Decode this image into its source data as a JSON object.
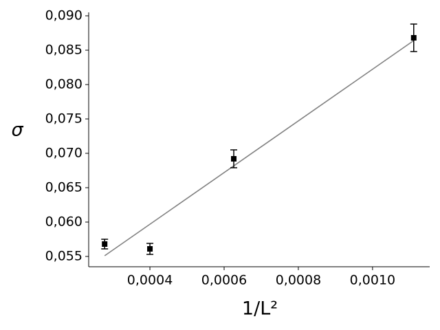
{
  "chart_data": {
    "type": "scatter",
    "xlabel": "1/L²",
    "ylabel": "σ",
    "x": [
      0.000278,
      0.0004,
      0.000626,
      0.001111
    ],
    "values": [
      0.0568,
      0.0561,
      0.0692,
      0.0868
    ],
    "errors": [
      0.0007,
      0.0008,
      0.0013,
      0.002
    ],
    "color": "#000000",
    "fit": {
      "x": [
        0.000278,
        0.001111
      ],
      "values": [
        0.0551,
        0.0864
      ],
      "color": "#808080"
    },
    "xlim": [
      0.000235,
      0.001154
    ],
    "ylim": [
      0.0535,
      0.0905
    ],
    "xticks": [
      {
        "value": 0.0004,
        "label": "0,0004"
      },
      {
        "value": 0.0006,
        "label": "0,0006"
      },
      {
        "value": 0.0008,
        "label": "0,0008"
      },
      {
        "value": 0.001,
        "label": "0,0010"
      }
    ],
    "yticks": [
      {
        "value": 0.055,
        "label": "0,055"
      },
      {
        "value": 0.06,
        "label": "0,060"
      },
      {
        "value": 0.065,
        "label": "0,065"
      },
      {
        "value": 0.07,
        "label": "0,070"
      },
      {
        "value": 0.075,
        "label": "0,075"
      },
      {
        "value": 0.08,
        "label": "0,080"
      },
      {
        "value": 0.085,
        "label": "0,085"
      },
      {
        "value": 0.09,
        "label": "0,090"
      }
    ]
  }
}
